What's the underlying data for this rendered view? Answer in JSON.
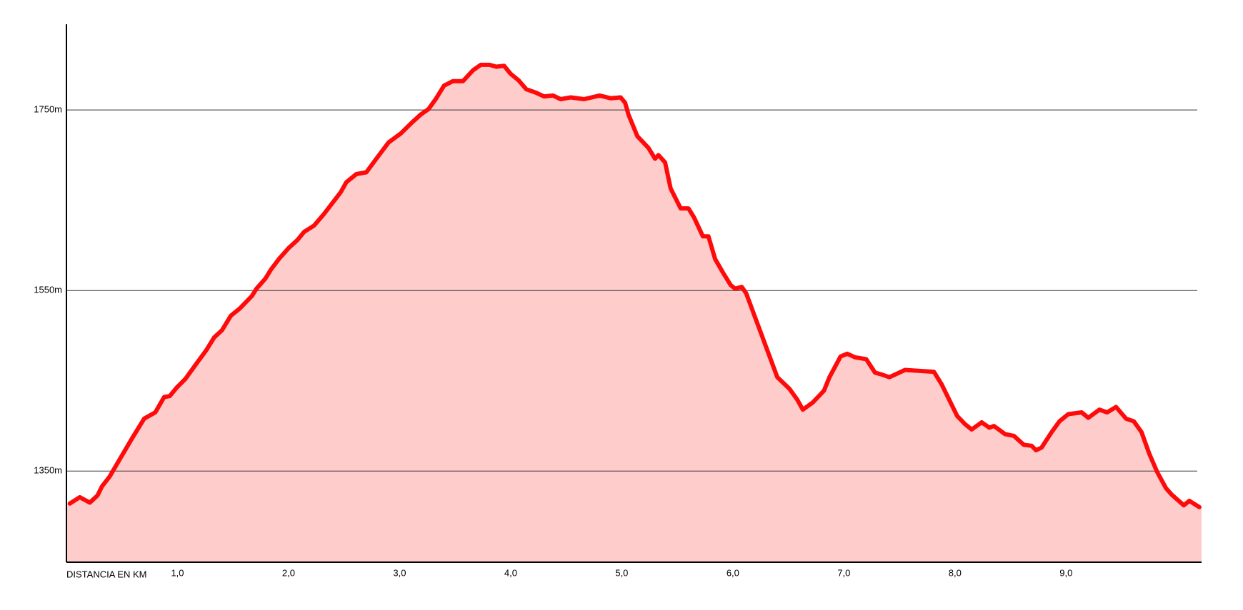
{
  "chart_data": {
    "type": "area",
    "x_label": "DISTANCIA EN KM",
    "x": [
      0.03,
      0.12,
      0.21,
      0.28,
      0.32,
      0.39,
      0.48,
      0.59,
      0.7,
      0.8,
      0.88,
      0.93,
      0.99,
      1.07,
      1.17,
      1.26,
      1.33,
      1.4,
      1.48,
      1.56,
      1.67,
      1.71,
      1.79,
      1.84,
      1.92,
      2.0,
      2.08,
      2.14,
      2.23,
      2.32,
      2.47,
      2.52,
      2.61,
      2.7,
      2.79,
      2.9,
      3.01,
      3.11,
      3.19,
      3.26,
      3.33,
      3.4,
      3.48,
      3.57,
      3.66,
      3.73,
      3.81,
      3.87,
      3.94,
      4.0,
      4.07,
      4.14,
      4.23,
      4.3,
      4.38,
      4.45,
      4.54,
      4.66,
      4.8,
      4.9,
      4.99,
      5.03,
      5.06,
      5.14,
      5.24,
      5.3,
      5.33,
      5.39,
      5.44,
      5.53,
      5.6,
      5.65,
      5.73,
      5.78,
      5.84,
      5.91,
      5.98,
      6.02,
      6.08,
      6.12,
      6.4,
      6.51,
      6.58,
      6.63,
      6.72,
      6.82,
      6.87,
      6.97,
      7.03,
      7.1,
      7.2,
      7.28,
      7.34,
      7.41,
      7.55,
      7.81,
      7.88,
      8.02,
      8.09,
      8.15,
      8.24,
      8.31,
      8.35,
      8.45,
      8.53,
      8.62,
      8.69,
      8.73,
      8.78,
      8.87,
      8.94,
      9.02,
      9.14,
      9.2,
      9.3,
      9.37,
      9.45,
      9.54,
      9.61,
      9.68,
      9.75,
      9.82,
      9.9,
      9.95,
      10.06,
      10.11,
      10.2
    ],
    "values": [
      1314,
      1321,
      1315,
      1323,
      1333,
      1344,
      1363,
      1386,
      1408,
      1415,
      1432,
      1433,
      1442,
      1452,
      1469,
      1484,
      1498,
      1506,
      1522,
      1530,
      1544,
      1552,
      1563,
      1573,
      1586,
      1597,
      1606,
      1615,
      1622,
      1635,
      1659,
      1670,
      1679,
      1681,
      1696,
      1714,
      1724,
      1736,
      1745,
      1751,
      1763,
      1777,
      1782,
      1782,
      1794,
      1800,
      1800,
      1798,
      1799,
      1790,
      1783,
      1773,
      1769,
      1765,
      1766,
      1762,
      1764,
      1762,
      1766,
      1763,
      1764,
      1758,
      1745,
      1721,
      1708,
      1696,
      1700,
      1692,
      1663,
      1641,
      1641,
      1631,
      1610,
      1610,
      1585,
      1570,
      1556,
      1552,
      1554,
      1547,
      1454,
      1441,
      1429,
      1418,
      1426,
      1439,
      1454,
      1477,
      1480,
      1476,
      1474,
      1459,
      1457,
      1454,
      1462,
      1460,
      1446,
      1411,
      1402,
      1396,
      1404,
      1398,
      1400,
      1391,
      1389,
      1379,
      1378,
      1373,
      1376,
      1393,
      1405,
      1413,
      1415,
      1409,
      1418,
      1415,
      1421,
      1408,
      1405,
      1393,
      1369,
      1349,
      1331,
      1324,
      1312,
      1317,
      1310
    ],
    "color": "#ff0a0a",
    "fill_color": "#ffcccc",
    "xlim": [
      0,
      10.22
    ],
    "ylim": [
      1249,
      1845
    ],
    "xticks": [
      {
        "value": 1,
        "label": "1,0"
      },
      {
        "value": 2,
        "label": "2,0"
      },
      {
        "value": 3,
        "label": "3,0"
      },
      {
        "value": 4,
        "label": "4,0"
      },
      {
        "value": 5,
        "label": "5,0"
      },
      {
        "value": 6,
        "label": "6,0"
      },
      {
        "value": 7,
        "label": "7,0"
      },
      {
        "value": 8,
        "label": "8,0"
      },
      {
        "value": 9,
        "label": "9,0"
      }
    ],
    "yticks": [
      {
        "value": 1350,
        "label": "1350m"
      },
      {
        "value": 1550,
        "label": "1550m"
      },
      {
        "value": 1750,
        "label": "1750m"
      }
    ],
    "grid": true
  }
}
